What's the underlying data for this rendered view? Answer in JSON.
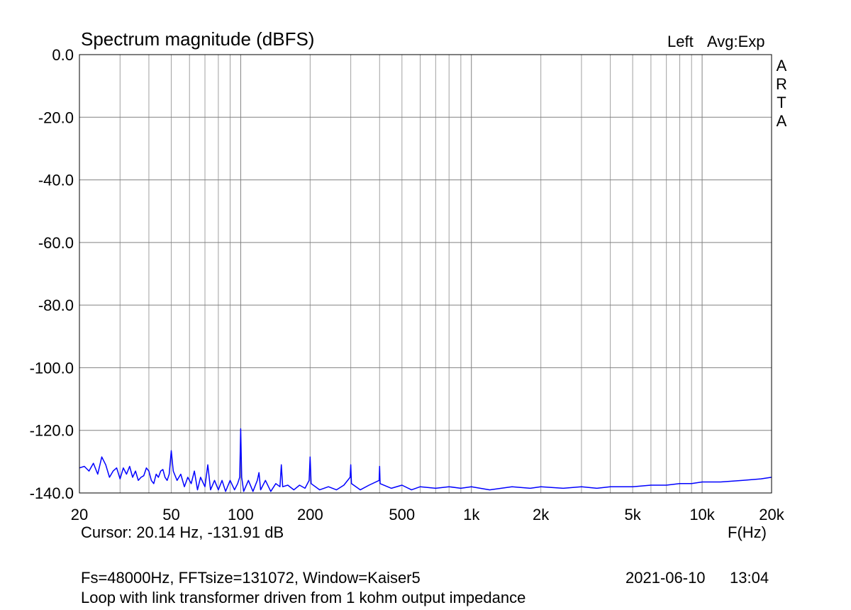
{
  "header": {
    "title": "Spectrum magnitude (dBFS)",
    "channel": "Left",
    "averaging": "Avg:Exp",
    "brand_vertical": [
      "A",
      "R",
      "T",
      "A"
    ]
  },
  "footer": {
    "cursor": "Cursor: 20.14 Hz, -131.91 dB",
    "x_unit": "F(Hz)",
    "params": "Fs=48000Hz, FFTsize=131072, Window=Kaiser5",
    "date": "2021-06-10",
    "time": "13:04",
    "description": "Loop with link transformer driven from 1 kohm output impedance"
  },
  "colors": {
    "trace": "#0000ff",
    "grid": "#a0a0a0",
    "background": "#ffffff",
    "axis_frame": "#000000"
  },
  "chart_data": {
    "type": "line",
    "title": "Spectrum magnitude (dBFS)",
    "xlabel": "F(Hz)",
    "ylabel": "",
    "xscale": "log",
    "xlim": [
      20,
      20000
    ],
    "ylim": [
      -140,
      0
    ],
    "grid": true,
    "x_ticks": [
      {
        "value": 20,
        "label": "20"
      },
      {
        "value": 50,
        "label": "50"
      },
      {
        "value": 100,
        "label": "100"
      },
      {
        "value": 200,
        "label": "200"
      },
      {
        "value": 500,
        "label": "500"
      },
      {
        "value": 1000,
        "label": "1k"
      },
      {
        "value": 2000,
        "label": "2k"
      },
      {
        "value": 5000,
        "label": "5k"
      },
      {
        "value": 10000,
        "label": "10k"
      },
      {
        "value": 20000,
        "label": "20k"
      }
    ],
    "y_ticks": [
      {
        "value": 0,
        "label": "0.0"
      },
      {
        "value": -20,
        "label": "-20.0"
      },
      {
        "value": -40,
        "label": "-40.0"
      },
      {
        "value": -60,
        "label": "-60.0"
      },
      {
        "value": -80,
        "label": "-80.0"
      },
      {
        "value": -100,
        "label": "-100.0"
      },
      {
        "value": -120,
        "label": "-120.0"
      },
      {
        "value": -140,
        "label": "-140.0"
      }
    ],
    "series": [
      {
        "points": [
          [
            20,
            -132
          ],
          [
            21,
            -131.5
          ],
          [
            22,
            -133
          ],
          [
            23,
            -130.5
          ],
          [
            24,
            -134
          ],
          [
            25,
            -128.5
          ],
          [
            26,
            -131
          ],
          [
            27,
            -135
          ],
          [
            28,
            -133
          ],
          [
            29,
            -132
          ],
          [
            30,
            -135.5
          ],
          [
            31,
            -132
          ],
          [
            32,
            -134
          ],
          [
            33,
            -131.5
          ],
          [
            34,
            -135
          ],
          [
            35,
            -133
          ],
          [
            36,
            -136
          ],
          [
            37,
            -135
          ],
          [
            38,
            -134.5
          ],
          [
            39,
            -132
          ],
          [
            40,
            -133
          ],
          [
            41,
            -136
          ],
          [
            42,
            -137
          ],
          [
            43,
            -134
          ],
          [
            44,
            -135
          ],
          [
            45,
            -133
          ],
          [
            46,
            -132.5
          ],
          [
            47,
            -135
          ],
          [
            48,
            -136
          ],
          [
            49,
            -134
          ],
          [
            50,
            -126.5
          ],
          [
            51,
            -133
          ],
          [
            53,
            -136
          ],
          [
            55,
            -134
          ],
          [
            57,
            -138
          ],
          [
            59,
            -135
          ],
          [
            61,
            -137
          ],
          [
            63,
            -133
          ],
          [
            65,
            -139
          ],
          [
            67,
            -135
          ],
          [
            70,
            -138
          ],
          [
            72,
            -131
          ],
          [
            74,
            -139
          ],
          [
            77,
            -136
          ],
          [
            80,
            -139
          ],
          [
            83,
            -136
          ],
          [
            86,
            -139.5
          ],
          [
            90,
            -136
          ],
          [
            94,
            -139
          ],
          [
            97,
            -137
          ],
          [
            99,
            -135
          ],
          [
            100,
            -119.5
          ],
          [
            101,
            -135
          ],
          [
            103,
            -139.5
          ],
          [
            108,
            -136
          ],
          [
            113,
            -139.5
          ],
          [
            118,
            -136
          ],
          [
            120,
            -133.5
          ],
          [
            122,
            -139
          ],
          [
            128,
            -136
          ],
          [
            135,
            -139.5
          ],
          [
            142,
            -137
          ],
          [
            148,
            -138
          ],
          [
            150,
            -131
          ],
          [
            152,
            -138
          ],
          [
            160,
            -137.5
          ],
          [
            170,
            -139
          ],
          [
            180,
            -137.5
          ],
          [
            190,
            -138.5
          ],
          [
            198,
            -136
          ],
          [
            200,
            -128.5
          ],
          [
            202,
            -137
          ],
          [
            220,
            -139
          ],
          [
            240,
            -138
          ],
          [
            260,
            -139
          ],
          [
            280,
            -137.5
          ],
          [
            298,
            -135
          ],
          [
            300,
            -131
          ],
          [
            302,
            -137
          ],
          [
            330,
            -139
          ],
          [
            360,
            -137.5
          ],
          [
            398,
            -136
          ],
          [
            400,
            -131.5
          ],
          [
            402,
            -137
          ],
          [
            450,
            -138.5
          ],
          [
            500,
            -137.5
          ],
          [
            550,
            -139
          ],
          [
            600,
            -138
          ],
          [
            700,
            -138.5
          ],
          [
            800,
            -138
          ],
          [
            900,
            -138.5
          ],
          [
            1000,
            -138
          ],
          [
            1200,
            -139
          ],
          [
            1500,
            -138
          ],
          [
            1800,
            -138.5
          ],
          [
            2000,
            -138
          ],
          [
            2500,
            -138.5
          ],
          [
            3000,
            -138
          ],
          [
            3500,
            -138.5
          ],
          [
            4000,
            -138
          ],
          [
            5000,
            -138
          ],
          [
            6000,
            -137.5
          ],
          [
            7000,
            -137.5
          ],
          [
            8000,
            -137
          ],
          [
            9000,
            -137
          ],
          [
            10000,
            -136.5
          ],
          [
            12000,
            -136.5
          ],
          [
            15000,
            -136
          ],
          [
            18000,
            -135.5
          ],
          [
            20000,
            -135
          ]
        ]
      }
    ]
  }
}
